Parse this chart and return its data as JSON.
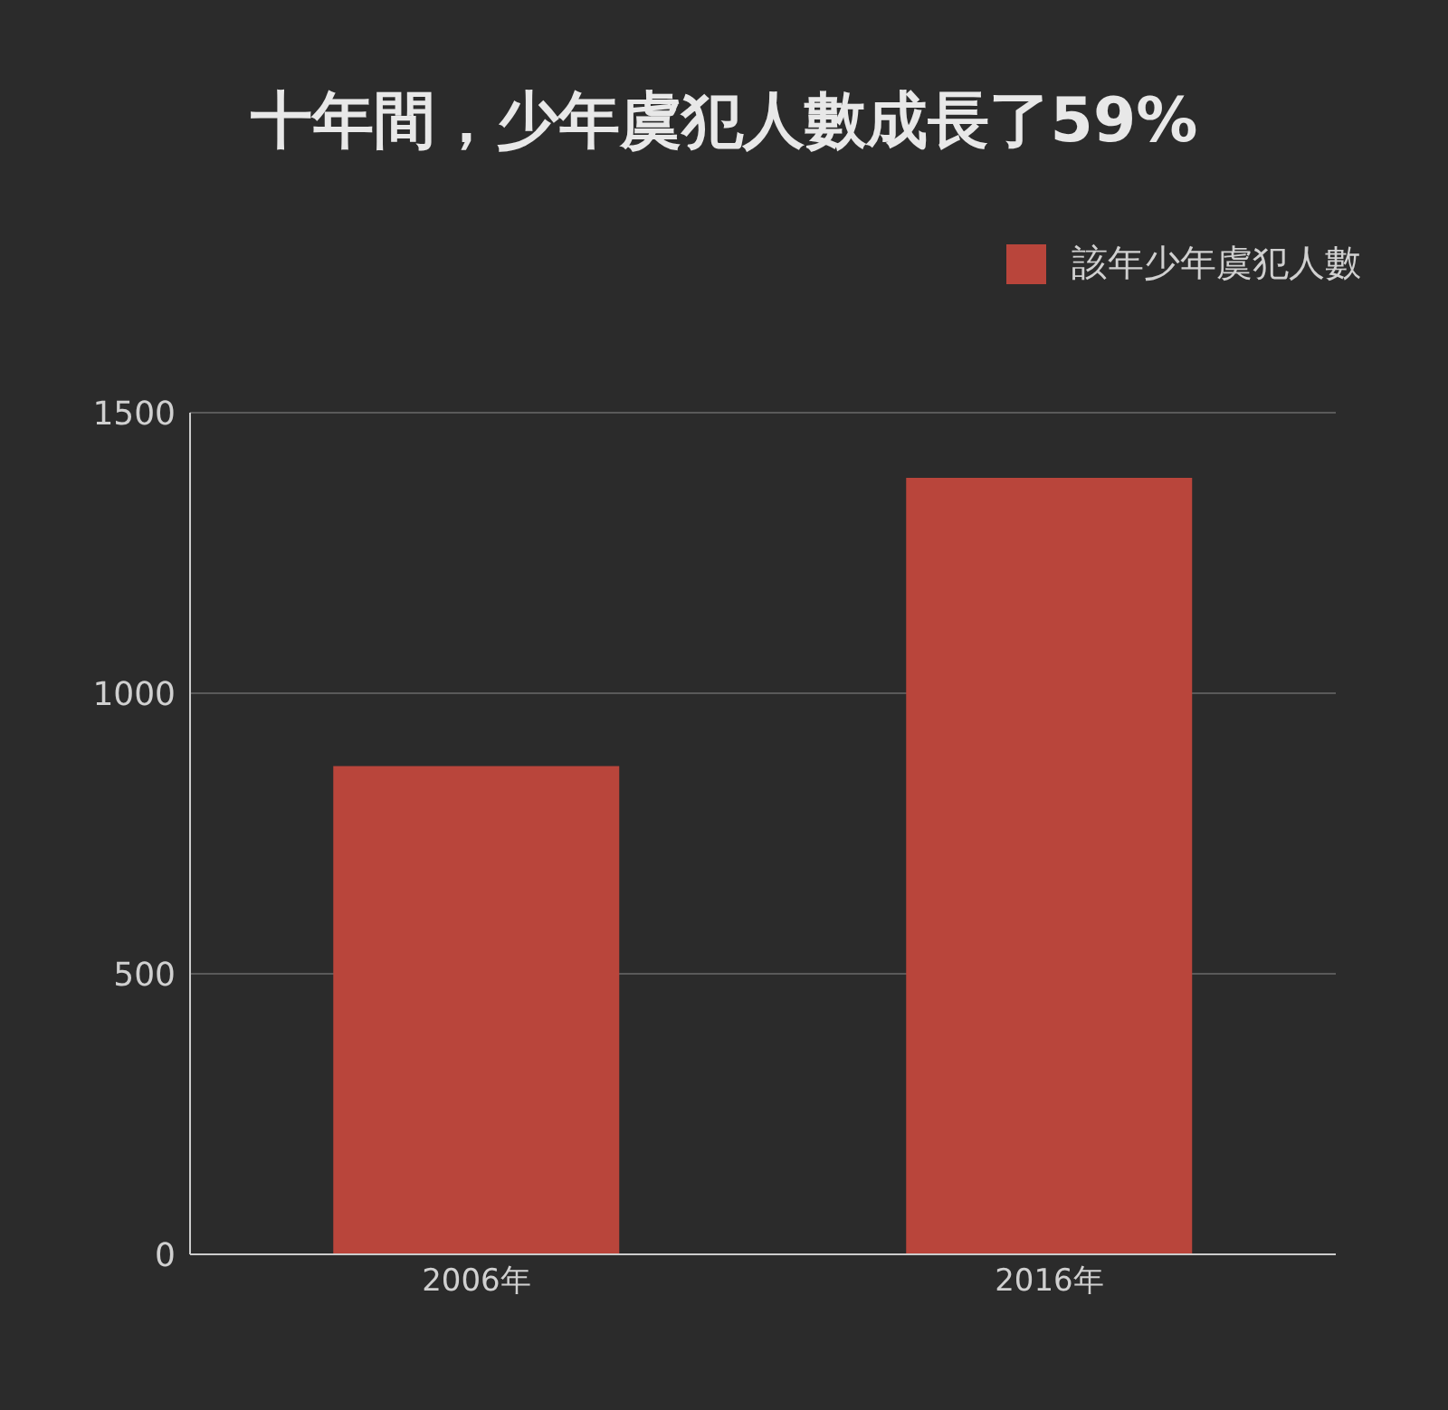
{
  "chart_data": {
    "type": "bar",
    "title": "十年間，少年虞犯人數成長了59%",
    "categories": [
      "2006年",
      "2016年"
    ],
    "series": [
      {
        "name": "該年少年虞犯人數",
        "color": "#b9453b",
        "values": [
          870,
          1384
        ]
      }
    ],
    "ylim": [
      0,
      1500
    ],
    "yticks": [
      0,
      500,
      1000,
      1500
    ],
    "grid": "y",
    "legend": "top right"
  }
}
